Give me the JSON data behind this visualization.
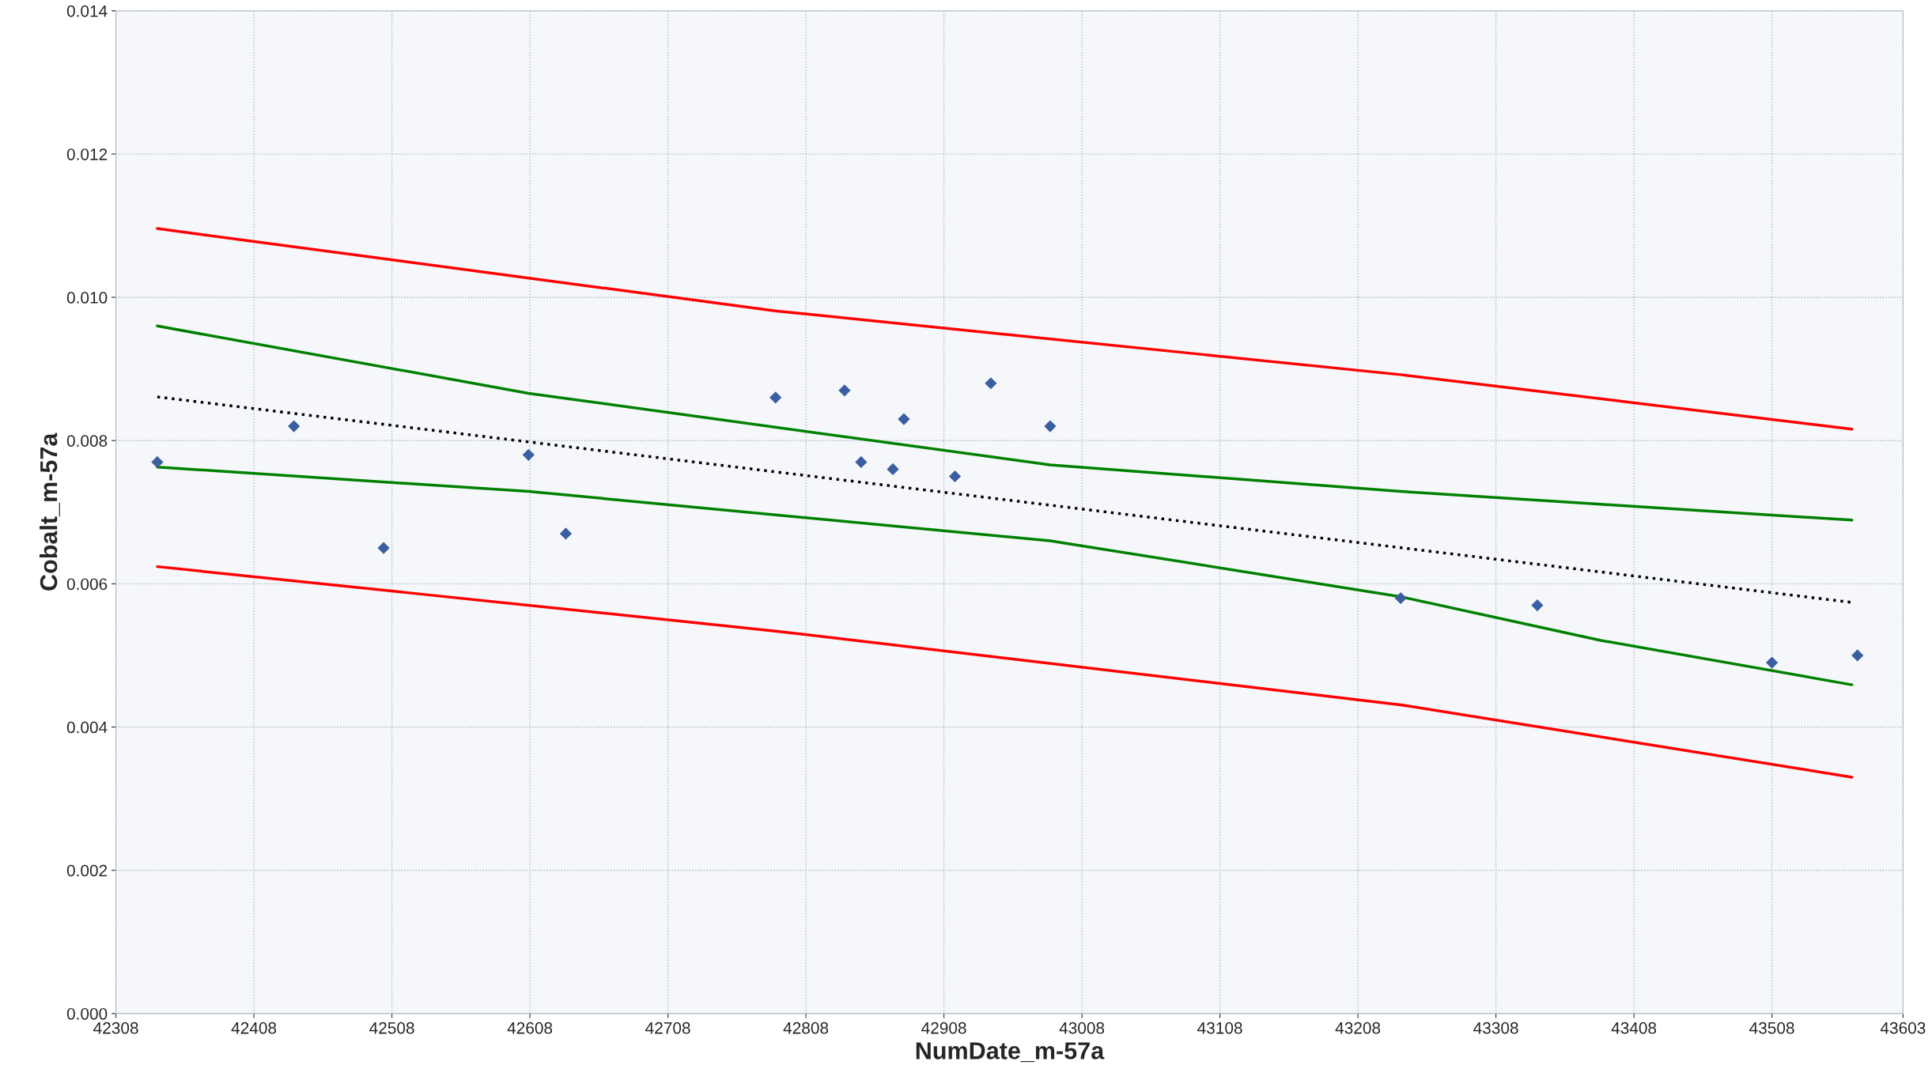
{
  "chart_data": {
    "type": "scatter",
    "xlabel": "NumDate_m-57a",
    "ylabel": "Cobalt_m-57a",
    "xlim": [
      42308,
      43603
    ],
    "xticks": [
      42308,
      42408,
      42508,
      42608,
      42708,
      42808,
      42908,
      43008,
      43108,
      43208,
      43308,
      43408,
      43508,
      43603
    ],
    "ylim": [
      0,
      0.014
    ],
    "yticks": [
      {
        "value": 0,
        "label": "0.000"
      },
      {
        "value": 0.002,
        "label": "0.002"
      },
      {
        "value": 0.004,
        "label": "0.004"
      },
      {
        "value": 0.006,
        "label": "0.006"
      },
      {
        "value": 0.008,
        "label": "0.008"
      },
      {
        "value": 0.01,
        "label": "0.010"
      },
      {
        "value": 0.012,
        "label": "0.012"
      },
      {
        "value": 0.014,
        "label": "0.014"
      }
    ],
    "grid": true,
    "series": [
      {
        "type": "line",
        "color": "#ff0000",
        "line_style": "solid",
        "x": [
          42338,
          42786,
          43239,
          43566
        ],
        "values": [
          0.01096,
          0.00981,
          0.00892,
          0.00816
        ]
      },
      {
        "type": "line",
        "color": "#008000",
        "line_style": "solid",
        "x": [
          42338,
          42607,
          42985,
          43239,
          43384,
          43566
        ],
        "values": [
          0.0096,
          0.00866,
          0.00766,
          0.00729,
          0.00711,
          0.00689
        ]
      },
      {
        "type": "line",
        "color": "#000000",
        "line_style": "dotted",
        "x": [
          42338,
          43566
        ],
        "values": [
          0.00861,
          0.00574
        ]
      },
      {
        "type": "line",
        "color": "#008000",
        "line_style": "solid",
        "x": [
          42338,
          42607,
          42985,
          43239,
          43384,
          43566
        ],
        "values": [
          0.00763,
          0.00729,
          0.0066,
          0.00582,
          0.00521,
          0.00459
        ]
      },
      {
        "type": "line",
        "color": "#ff0000",
        "line_style": "solid",
        "x": [
          42338,
          42786,
          43239,
          43566
        ],
        "values": [
          0.00624,
          0.00534,
          0.00431,
          0.0033
        ]
      },
      {
        "color": "#3a5fa0",
        "marker": "diamond",
        "x": [
          42338,
          42437,
          42502,
          42607,
          42634,
          42786,
          42836,
          42848,
          42871,
          42879,
          42916,
          42942,
          42985,
          43239,
          43338,
          43508,
          43570
        ],
        "values": [
          0.0077,
          0.0082,
          0.0065,
          0.0078,
          0.0067,
          0.0086,
          0.0087,
          0.0077,
          0.0076,
          0.0083,
          0.0075,
          0.0088,
          0.0082,
          0.0058,
          0.0057,
          0.0049,
          0.005
        ]
      }
    ]
  }
}
